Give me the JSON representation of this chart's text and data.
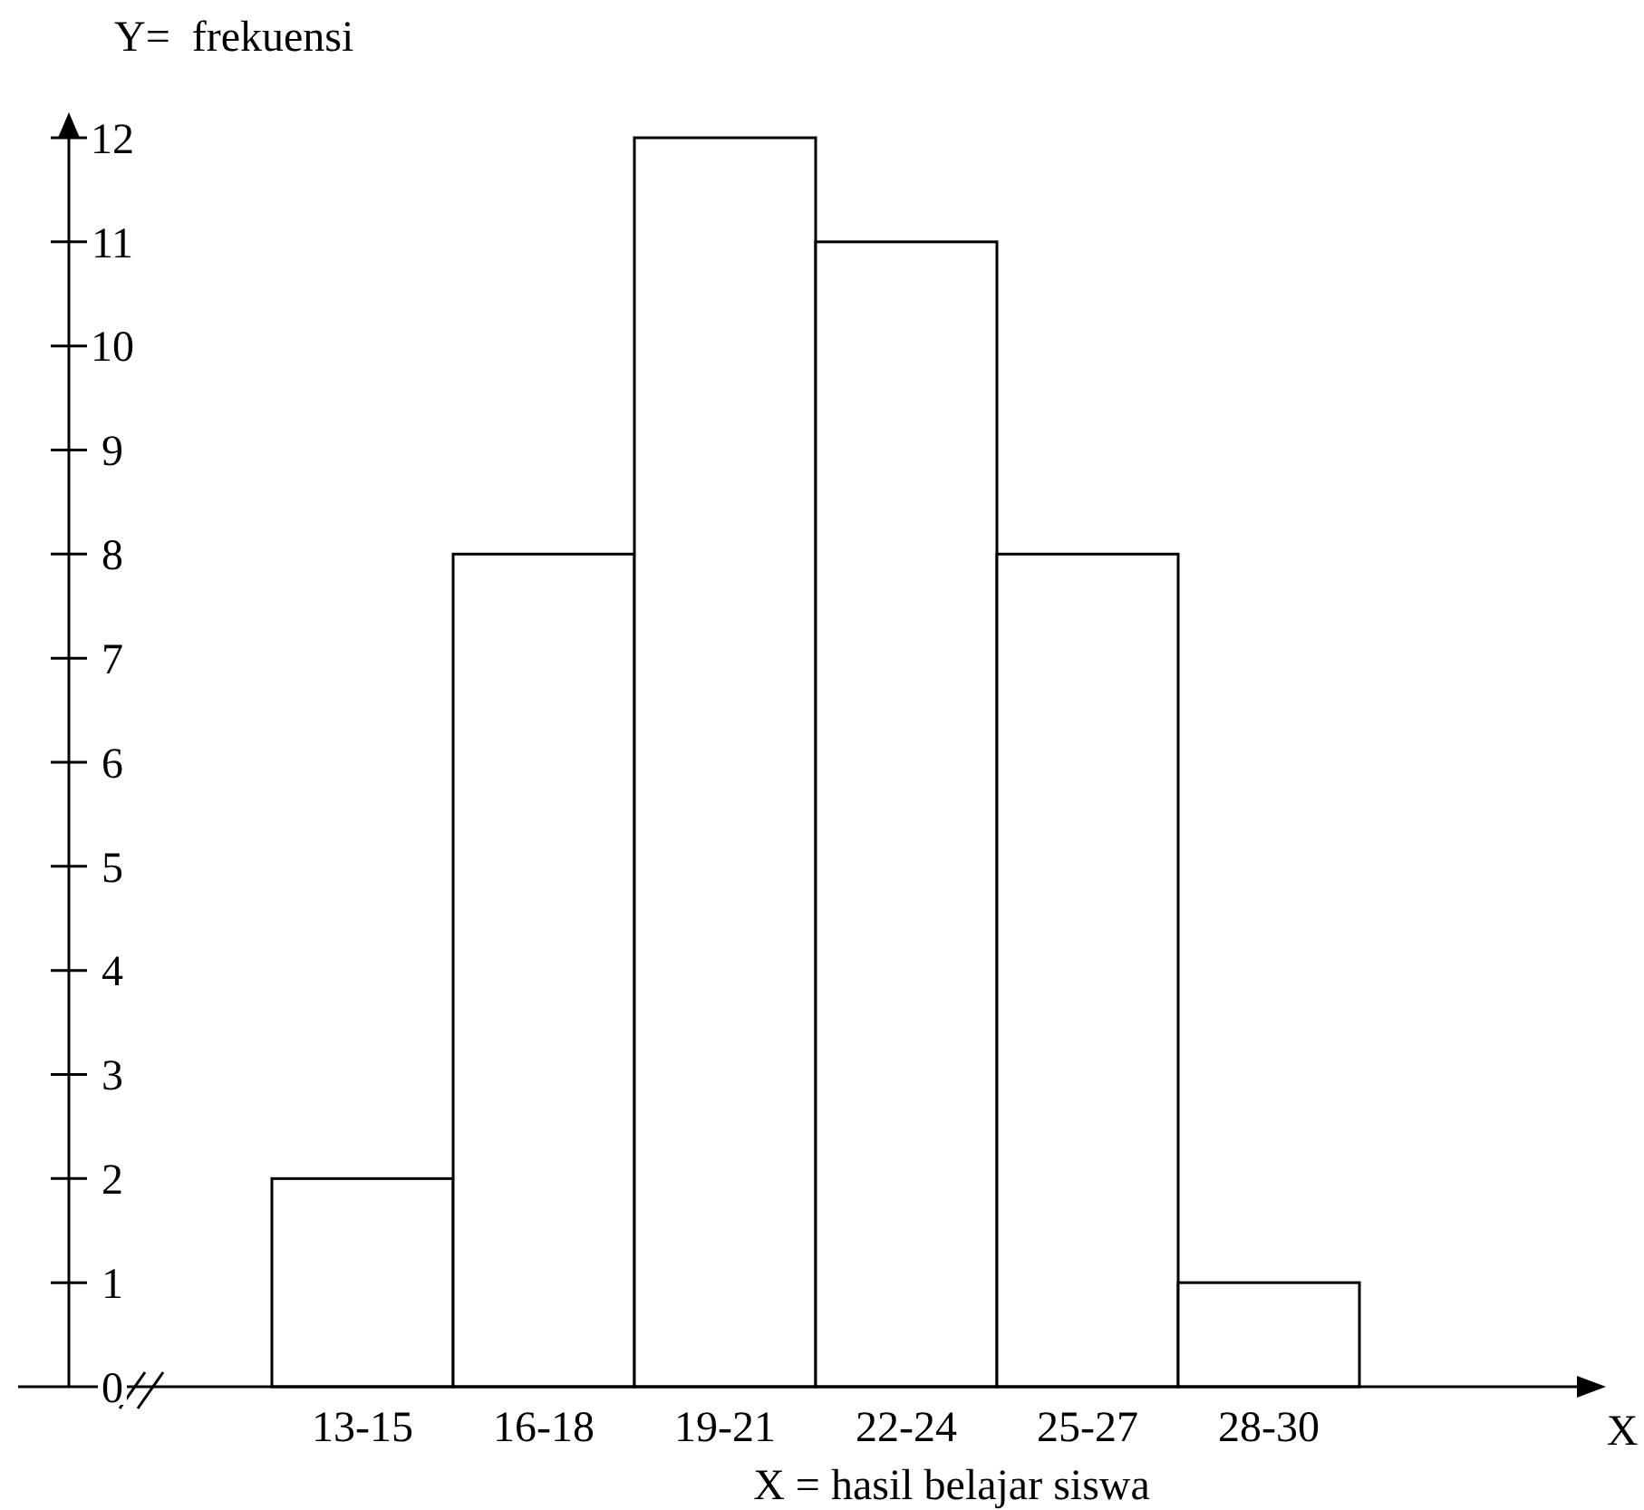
{
  "chart_data": {
    "type": "bar",
    "ylabel": "Y=  frekuensi",
    "xlabel": "X = hasil belajar siswa",
    "annotations": [
      "X"
    ],
    "categories": [
      "13-15",
      "16-18",
      "19-21",
      "22-24",
      "25-27",
      "28-30"
    ],
    "values": [
      2,
      8,
      12,
      11,
      8,
      1
    ],
    "color": "#ffffff",
    "ylim": [
      0,
      12
    ],
    "yticks": [
      0,
      1,
      2,
      3,
      4,
      5,
      6,
      7,
      8,
      9,
      10,
      11,
      12
    ],
    "grid": false
  }
}
